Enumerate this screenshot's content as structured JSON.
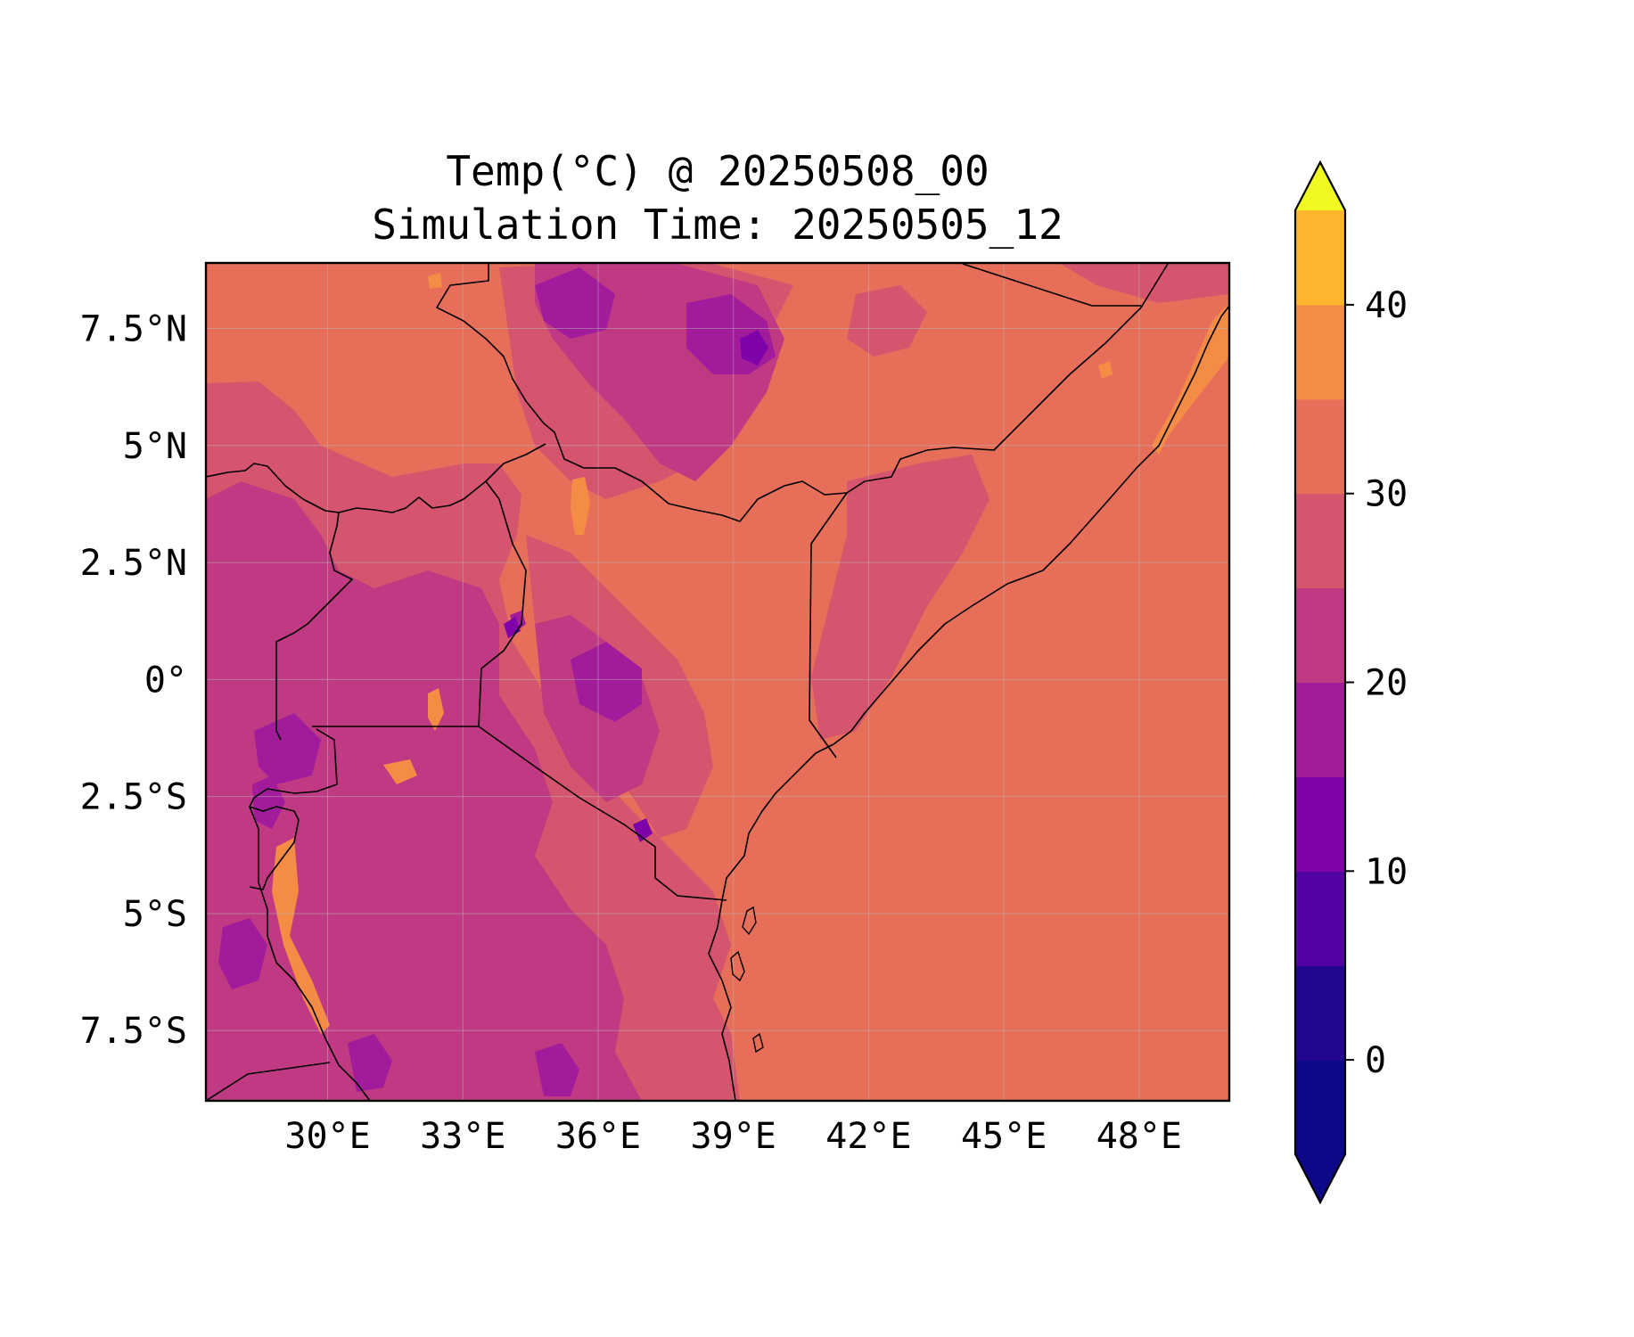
{
  "title": {
    "line1": "Temp(°C) @ 20250508_00",
    "line2": "Simulation Time: 20250505_12"
  },
  "map": {
    "lon_range": [
      27.3,
      50.0
    ],
    "lat_range": [
      -9.0,
      8.9
    ],
    "lon_ticks": [
      {
        "value": 30,
        "label": "30°E"
      },
      {
        "value": 33,
        "label": "33°E"
      },
      {
        "value": 36,
        "label": "36°E"
      },
      {
        "value": 39,
        "label": "39°E"
      },
      {
        "value": 42,
        "label": "42°E"
      },
      {
        "value": 45,
        "label": "45°E"
      },
      {
        "value": 48,
        "label": "48°E"
      }
    ],
    "lat_ticks": [
      {
        "value": 7.5,
        "label": "7.5°N"
      },
      {
        "value": 5,
        "label": "5°N"
      },
      {
        "value": 2.5,
        "label": "2.5°N"
      },
      {
        "value": 0,
        "label": "0°"
      },
      {
        "value": -2.5,
        "label": "2.5°S"
      },
      {
        "value": -5,
        "label": "5°S"
      },
      {
        "value": -7.5,
        "label": "7.5°S"
      }
    ],
    "gridlines": true
  },
  "colorbar": {
    "extend": "both",
    "levels": [
      -5,
      0,
      5,
      10,
      15,
      20,
      25,
      30,
      35,
      40,
      45
    ],
    "colors": [
      "#0d0887",
      "#220690",
      "#5402a3",
      "#7e03a8",
      "#a11b9b",
      "#c03a83",
      "#d5546e",
      "#e76f5a",
      "#f58c46",
      "#fdb42f",
      "#f3e12c"
    ],
    "under_color": "#0d0887",
    "over_color": "#f0f921",
    "ticks": [
      {
        "value": 0,
        "label": "0"
      },
      {
        "value": 10,
        "label": "10"
      },
      {
        "value": 20,
        "label": "20"
      },
      {
        "value": 30,
        "label": "30"
      },
      {
        "value": 40,
        "label": "40"
      }
    ]
  }
}
